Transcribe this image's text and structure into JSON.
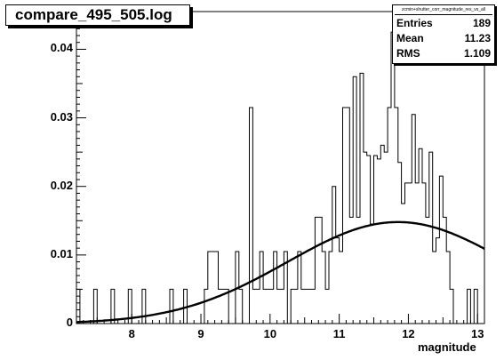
{
  "title": "compare_495_505.log",
  "stats": {
    "name": "zcmin+shutter_corr_magnitude_res_vs_all",
    "rows": [
      {
        "key": "Entries",
        "value": "189"
      },
      {
        "key": "Mean",
        "value": "11.23"
      },
      {
        "key": "RMS",
        "value": "1.109"
      }
    ]
  },
  "chart_data": {
    "type": "line",
    "xlabel": "magnitude",
    "ylabel": "",
    "xlim": [
      7.2,
      13.1
    ],
    "ylim": [
      0,
      0.0455
    ],
    "x_ticks": [
      "8",
      "9",
      "10",
      "11",
      "12",
      "13"
    ],
    "y_ticks": [
      "0",
      "0.01",
      "0.02",
      "0.03",
      "0.04"
    ],
    "histogram": {
      "bin_width": 0.05,
      "bins": [
        [
          7.2,
          0.005
        ],
        [
          7.25,
          0
        ],
        [
          7.45,
          0.005
        ],
        [
          7.5,
          0
        ],
        [
          7.7,
          0.005
        ],
        [
          7.75,
          0
        ],
        [
          7.95,
          0.005
        ],
        [
          8.0,
          0
        ],
        [
          8.15,
          0.005
        ],
        [
          8.2,
          0
        ],
        [
          8.55,
          0.005
        ],
        [
          8.6,
          0
        ],
        [
          8.75,
          0.005
        ],
        [
          8.8,
          0
        ],
        [
          9.05,
          0.005
        ],
        [
          9.1,
          0.0105
        ],
        [
          9.25,
          0.005
        ],
        [
          9.3,
          0.005
        ],
        [
          9.4,
          0
        ],
        [
          9.5,
          0.0105
        ],
        [
          9.55,
          0.005
        ],
        [
          9.6,
          0
        ],
        [
          9.7,
          0.0315
        ],
        [
          9.75,
          0.005
        ],
        [
          9.85,
          0.0105
        ],
        [
          9.9,
          0.005
        ],
        [
          10.05,
          0.0105
        ],
        [
          10.1,
          0.005
        ],
        [
          10.2,
          0.0105
        ],
        [
          10.25,
          0
        ],
        [
          10.3,
          0.005
        ],
        [
          10.4,
          0.0105
        ],
        [
          10.45,
          0.005
        ],
        [
          10.6,
          0.005
        ],
        [
          10.65,
          0.0155
        ],
        [
          10.7,
          0.0155
        ],
        [
          10.75,
          0.0105
        ],
        [
          10.8,
          0.005
        ],
        [
          10.85,
          0.0105
        ],
        [
          10.9,
          0.02
        ],
        [
          10.95,
          0.0125
        ],
        [
          11.0,
          0.0105
        ],
        [
          11.05,
          0.0315
        ],
        [
          11.1,
          0.0315
        ],
        [
          11.15,
          0.0155
        ],
        [
          11.2,
          0.036
        ],
        [
          11.25,
          0.0155
        ],
        [
          11.3,
          0.0365
        ],
        [
          11.35,
          0.025
        ],
        [
          11.4,
          0.0245
        ],
        [
          11.45,
          0.0145
        ],
        [
          11.5,
          0.0245
        ],
        [
          11.55,
          0.024
        ],
        [
          11.6,
          0.026
        ],
        [
          11.65,
          0.025
        ],
        [
          11.7,
          0.0315
        ],
        [
          11.75,
          0.0425
        ],
        [
          11.8,
          0.0315
        ],
        [
          11.85,
          0.0235
        ],
        [
          11.9,
          0.0175
        ],
        [
          11.95,
          0.0205
        ],
        [
          12.0,
          0.0205
        ],
        [
          12.05,
          0.0305
        ],
        [
          12.1,
          0.0205
        ],
        [
          12.15,
          0.0255
        ],
        [
          12.2,
          0.0205
        ],
        [
          12.25,
          0.0155
        ],
        [
          12.3,
          0.025
        ],
        [
          12.35,
          0.0105
        ],
        [
          12.4,
          0.0125
        ],
        [
          12.45,
          0.0215
        ],
        [
          12.5,
          0.0155
        ],
        [
          12.55,
          0.0105
        ],
        [
          12.6,
          0.005
        ],
        [
          12.65,
          0
        ],
        [
          12.85,
          0.005
        ],
        [
          12.9,
          0
        ],
        [
          12.95,
          0.005
        ],
        [
          13.0,
          0
        ]
      ]
    },
    "fit": {
      "type": "gaussian",
      "amplitude": 0.0148,
      "mean": 11.85,
      "sigma": 1.6
    }
  }
}
